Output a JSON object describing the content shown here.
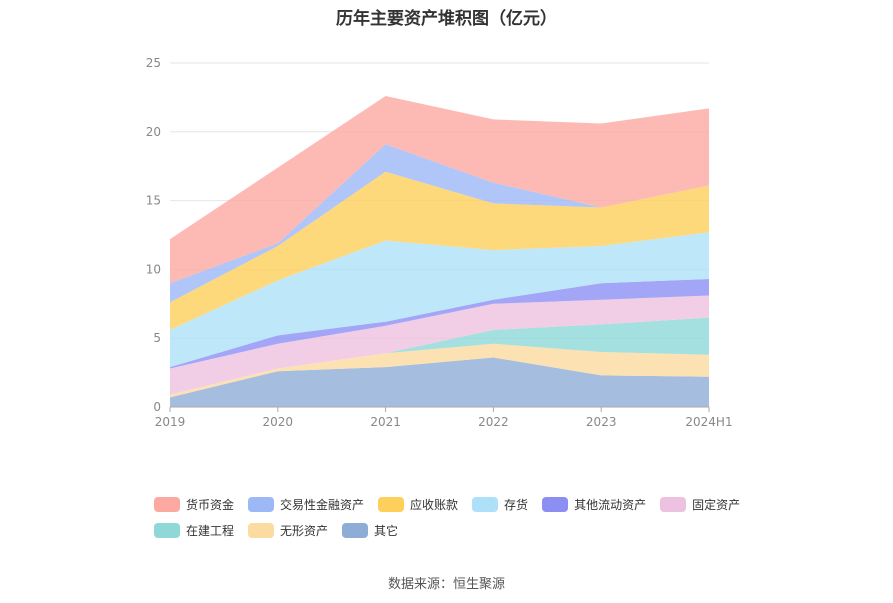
{
  "chart_data": {
    "type": "area",
    "stacked": true,
    "title": "历年主要资产堆积图（亿元）",
    "categories": [
      "2019",
      "2020",
      "2021",
      "2022",
      "2023",
      "2024H1"
    ],
    "ylim": [
      0,
      25
    ],
    "yticks": [
      0,
      5,
      10,
      15,
      20,
      25
    ],
    "grid": true,
    "legend_position": "bottom",
    "series": [
      {
        "name": "其它",
        "color": "#8eadd6",
        "values": [
          0.7,
          2.6,
          2.9,
          3.6,
          2.3,
          2.2
        ]
      },
      {
        "name": "无形资产",
        "color": "#fbdba0",
        "values": [
          0.2,
          0.2,
          1.0,
          1.0,
          1.7,
          1.6
        ]
      },
      {
        "name": "在建工程",
        "color": "#8fd8d8",
        "values": [
          0.0,
          0.0,
          0.0,
          1.0,
          2.0,
          2.7
        ]
      },
      {
        "name": "固定资产",
        "color": "#edc2e0",
        "values": [
          1.9,
          1.8,
          2.0,
          1.9,
          1.8,
          1.6
        ]
      },
      {
        "name": "其他流动资产",
        "color": "#8c8ef4",
        "values": [
          0.1,
          0.6,
          0.3,
          0.3,
          1.2,
          1.2
        ]
      },
      {
        "name": "存货",
        "color": "#aee1f9",
        "values": [
          2.7,
          4.0,
          5.9,
          3.6,
          2.7,
          3.4
        ]
      },
      {
        "name": "应收账款",
        "color": "#fecf5a",
        "values": [
          2.0,
          2.5,
          5.0,
          3.4,
          2.8,
          3.4
        ]
      },
      {
        "name": "交易性金融资产",
        "color": "#9cb8f6",
        "values": [
          1.4,
          0.2,
          2.0,
          1.5,
          0.0,
          0.0
        ]
      },
      {
        "name": "货币资金",
        "color": "#fca9a1",
        "values": [
          3.2,
          5.5,
          3.5,
          4.6,
          6.1,
          5.6
        ]
      }
    ],
    "legend_order": [
      "货币资金",
      "交易性金融资产",
      "应收账款",
      "存货",
      "其他流动资产",
      "固定资产",
      "在建工程",
      "无形资产",
      "其它"
    ]
  },
  "source": "数据来源：恒生聚源"
}
